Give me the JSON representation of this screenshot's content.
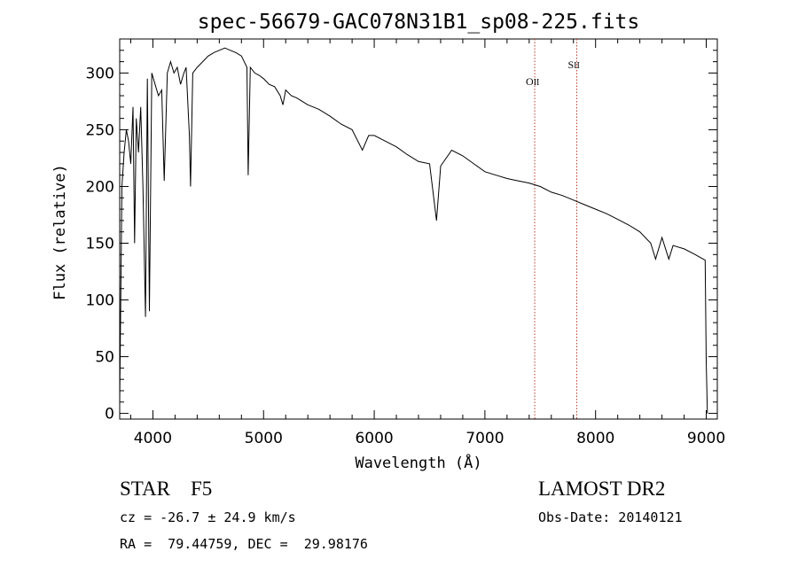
{
  "chart_data": {
    "type": "line",
    "title": "spec-56679-GAC078N31B1_sp08-225.fits",
    "xlabel": "Wavelength (Å)",
    "ylabel": "Flux (relative)",
    "xlim": [
      3700,
      9100
    ],
    "ylim": [
      -5,
      330
    ],
    "xticks": [
      4000,
      5000,
      6000,
      7000,
      8000,
      9000
    ],
    "yticks": [
      0,
      50,
      100,
      150,
      200,
      250,
      300
    ],
    "grid": false,
    "series": [
      {
        "x": [
          3700,
          3720,
          3740,
          3760,
          3780,
          3800,
          3820,
          3835,
          3850,
          3870,
          3890,
          3910,
          3933,
          3950,
          3968,
          3990,
          4020,
          4050,
          4080,
          4102,
          4130,
          4160,
          4190,
          4220,
          4250,
          4280,
          4300,
          4330,
          4340,
          4360,
          4400,
          4450,
          4500,
          4550,
          4600,
          4650,
          4700,
          4750,
          4800,
          4850,
          4861,
          4880,
          4920,
          4960,
          5000,
          5050,
          5100,
          5150,
          5175,
          5200,
          5250,
          5300,
          5350,
          5400,
          5450,
          5500,
          5600,
          5700,
          5800,
          5893,
          5950,
          6000,
          6100,
          6200,
          6300,
          6400,
          6500,
          6563,
          6600,
          6700,
          6800,
          6900,
          7000,
          7100,
          7200,
          7300,
          7400,
          7500,
          7600,
          7700,
          7800,
          7900,
          8000,
          8100,
          8200,
          8300,
          8400,
          8498,
          8542,
          8600,
          8662,
          8700,
          8800,
          8900,
          8990,
          9000,
          9010
        ],
        "y": [
          10,
          200,
          230,
          250,
          240,
          220,
          270,
          150,
          260,
          230,
          270,
          200,
          85,
          295,
          90,
          300,
          290,
          280,
          285,
          205,
          300,
          310,
          300,
          305,
          290,
          300,
          305,
          245,
          200,
          300,
          305,
          310,
          315,
          318,
          320,
          322,
          320,
          318,
          315,
          305,
          210,
          305,
          300,
          298,
          295,
          290,
          288,
          280,
          272,
          285,
          280,
          278,
          275,
          272,
          270,
          268,
          262,
          255,
          250,
          232,
          245,
          245,
          240,
          235,
          228,
          222,
          220,
          170,
          218,
          232,
          227,
          220,
          213,
          210,
          207,
          205,
          203,
          200,
          195,
          192,
          188,
          184,
          180,
          176,
          171,
          166,
          160,
          150,
          136,
          155,
          136,
          148,
          145,
          140,
          135,
          45,
          0
        ]
      }
    ],
    "vlines": [
      {
        "x": 7450,
        "label_main": "O",
        "label_sub": "II"
      },
      {
        "x": 7830,
        "label_main": "S",
        "label_sub": "II"
      }
    ],
    "line_color": "#000000",
    "vline_color": "#c0392b"
  },
  "info": {
    "class": "STAR    F5",
    "survey": "LAMOST DR2",
    "cz": "cz = -26.7 ± 24.9 km/s",
    "obs_date": "Obs-Date: 20140121",
    "radec": "RA =  79.44759, DEC =  29.98176"
  }
}
